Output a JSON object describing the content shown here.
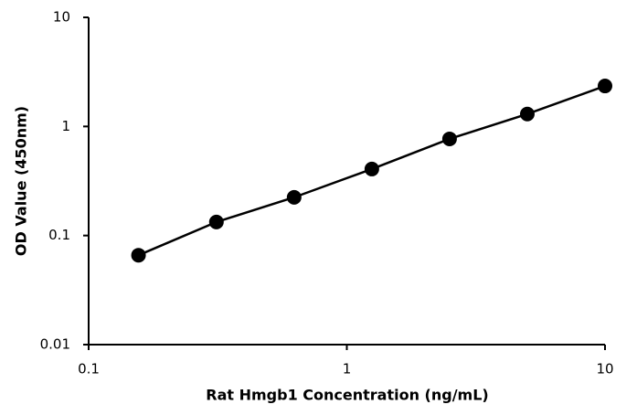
{
  "chart_data": {
    "type": "scatter",
    "x_label": "Rat Hmgb1 Concentration (ng/mL)",
    "y_label": "OD Value (450nm)",
    "x": [
      0.156,
      0.3125,
      0.625,
      1.25,
      2.5,
      5,
      10
    ],
    "series": [
      {
        "values": [
          0.066,
          0.133,
          0.224,
          0.407,
          0.769,
          1.3,
          2.35
        ],
        "color": "#000000"
      }
    ],
    "xlim": [
      0.1,
      10
    ],
    "ylim": [
      0.01,
      10
    ],
    "xticks": [
      0.1,
      1,
      10
    ],
    "yticks": [
      0.01,
      0.1,
      1,
      10
    ],
    "xscale": "log",
    "yscale": "log",
    "grid": false,
    "line": true
  }
}
